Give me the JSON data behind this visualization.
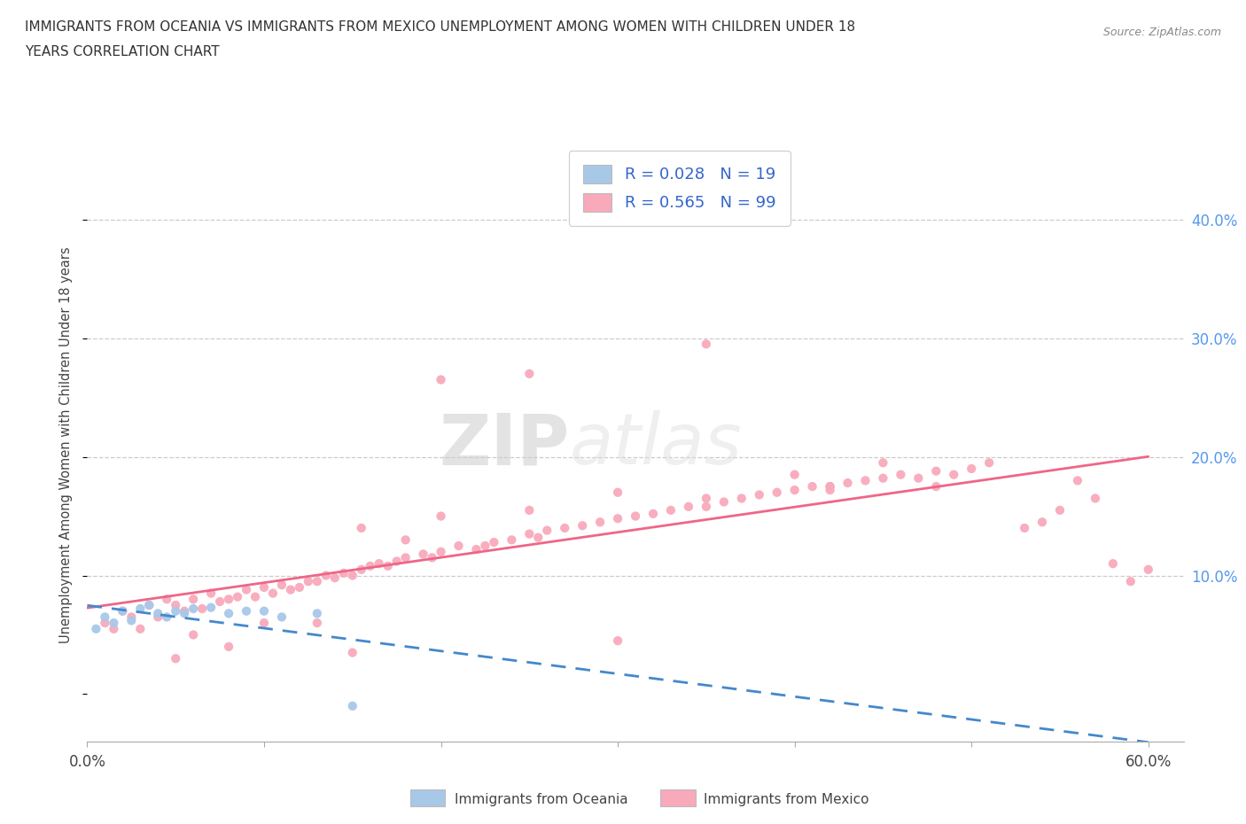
{
  "title_line1": "IMMIGRANTS FROM OCEANIA VS IMMIGRANTS FROM MEXICO UNEMPLOYMENT AMONG WOMEN WITH CHILDREN UNDER 18",
  "title_line2": "YEARS CORRELATION CHART",
  "source": "Source: ZipAtlas.com",
  "ylabel": "Unemployment Among Women with Children Under 18 years",
  "xlim": [
    0.0,
    0.62
  ],
  "ylim": [
    -0.04,
    0.46
  ],
  "color_oceania": "#a8c8e8",
  "color_mexico": "#f8aabb",
  "color_line_oceania": "#4488cc",
  "color_line_mexico": "#ee6688",
  "watermark_top": "ZIP",
  "watermark_bot": "atlas",
  "R_oceania": 0.028,
  "N_oceania": 19,
  "R_mexico": 0.565,
  "N_mexico": 99,
  "oceania_x": [
    0.005,
    0.01,
    0.015,
    0.02,
    0.025,
    0.03,
    0.035,
    0.04,
    0.045,
    0.05,
    0.055,
    0.06,
    0.07,
    0.08,
    0.09,
    0.1,
    0.11,
    0.13,
    0.15
  ],
  "oceania_y": [
    0.055,
    0.065,
    0.06,
    0.07,
    0.062,
    0.072,
    0.075,
    0.068,
    0.065,
    0.07,
    0.068,
    0.072,
    0.073,
    0.068,
    0.07,
    0.07,
    0.065,
    0.068,
    -0.01
  ],
  "mexico_x": [
    0.01,
    0.015,
    0.02,
    0.025,
    0.03,
    0.035,
    0.04,
    0.045,
    0.05,
    0.055,
    0.06,
    0.065,
    0.07,
    0.075,
    0.08,
    0.085,
    0.09,
    0.095,
    0.1,
    0.105,
    0.11,
    0.115,
    0.12,
    0.125,
    0.13,
    0.135,
    0.14,
    0.145,
    0.15,
    0.155,
    0.16,
    0.165,
    0.17,
    0.175,
    0.18,
    0.19,
    0.195,
    0.2,
    0.21,
    0.22,
    0.225,
    0.23,
    0.24,
    0.25,
    0.255,
    0.26,
    0.27,
    0.28,
    0.29,
    0.3,
    0.31,
    0.32,
    0.33,
    0.34,
    0.35,
    0.36,
    0.37,
    0.38,
    0.39,
    0.4,
    0.41,
    0.42,
    0.43,
    0.44,
    0.45,
    0.46,
    0.47,
    0.48,
    0.49,
    0.5,
    0.155,
    0.2,
    0.25,
    0.3,
    0.35,
    0.4,
    0.42,
    0.45,
    0.48,
    0.51,
    0.53,
    0.54,
    0.55,
    0.56,
    0.57,
    0.58,
    0.59,
    0.6,
    0.05,
    0.1,
    0.15,
    0.2,
    0.35,
    0.42,
    0.3,
    0.25,
    0.18,
    0.13,
    0.08,
    0.06
  ],
  "mexico_y": [
    0.06,
    0.055,
    0.07,
    0.065,
    0.055,
    0.075,
    0.065,
    0.08,
    0.075,
    0.07,
    0.08,
    0.072,
    0.085,
    0.078,
    0.08,
    0.082,
    0.088,
    0.082,
    0.09,
    0.085,
    0.092,
    0.088,
    0.09,
    0.095,
    0.095,
    0.1,
    0.098,
    0.102,
    0.1,
    0.105,
    0.108,
    0.11,
    0.108,
    0.112,
    0.115,
    0.118,
    0.115,
    0.12,
    0.125,
    0.122,
    0.125,
    0.128,
    0.13,
    0.135,
    0.132,
    0.138,
    0.14,
    0.142,
    0.145,
    0.148,
    0.15,
    0.152,
    0.155,
    0.158,
    0.158,
    0.162,
    0.165,
    0.168,
    0.17,
    0.172,
    0.175,
    0.172,
    0.178,
    0.18,
    0.182,
    0.185,
    0.182,
    0.188,
    0.185,
    0.19,
    0.14,
    0.15,
    0.155,
    0.17,
    0.165,
    0.185,
    0.175,
    0.195,
    0.175,
    0.195,
    0.14,
    0.145,
    0.155,
    0.18,
    0.165,
    0.11,
    0.095,
    0.105,
    0.03,
    0.06,
    0.035,
    0.265,
    0.295,
    0.175,
    0.045,
    0.27,
    0.13,
    0.06,
    0.04,
    0.05
  ]
}
